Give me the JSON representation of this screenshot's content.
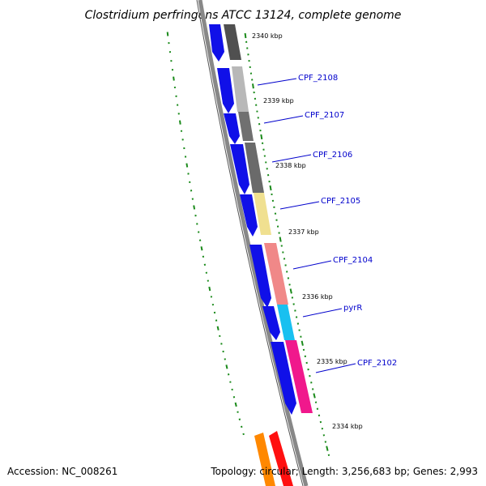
{
  "title": "Clostridium perfringens ATCC 13124, complete genome",
  "footer": {
    "accession": "Accession: NC_008261",
    "summary": "Topology: circular; Length: 3,256,683 bp; Genes: 2,993"
  },
  "ticks": [
    "2340 kbp",
    "2339 kbp",
    "2338 kbp",
    "2337 kbp",
    "2336 kbp",
    "2335 kbp",
    "2334 kbp"
  ],
  "gene_labels": [
    "CPF_2108",
    "CPF_2107",
    "CPF_2106",
    "CPF_2105",
    "CPF_2104",
    "pyrR",
    "CPF_2102"
  ],
  "colors": {
    "backbone": "#888888",
    "orf": "#1010e8",
    "tick": "#1a8a1a",
    "label_line": "#0000cc",
    "gene_colors": [
      "#505050",
      "#b8b8b8",
      "#707070",
      "#6a6a6a",
      "#f0e090",
      "#f08888",
      "#18c0f0",
      "#f0188c",
      "#ff8800",
      "#ff1010"
    ]
  }
}
